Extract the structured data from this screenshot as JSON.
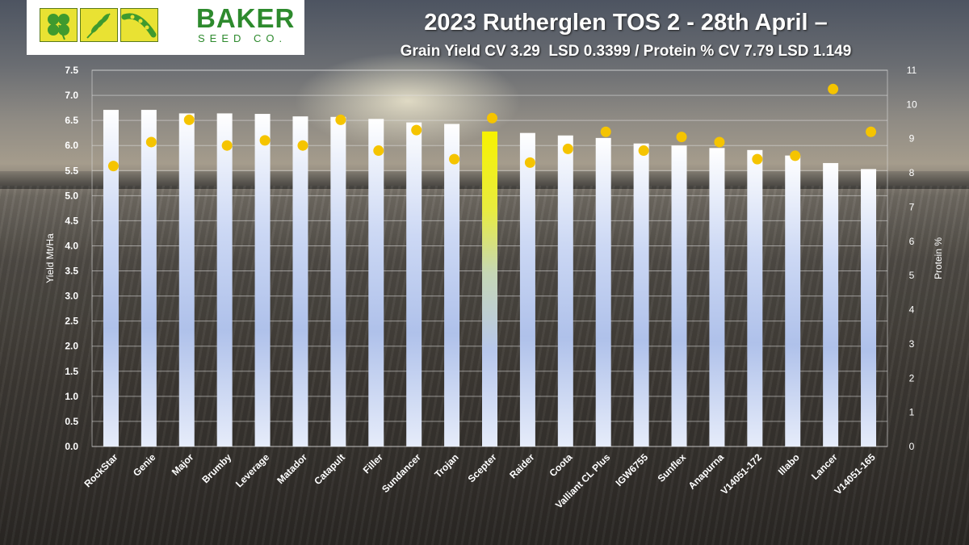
{
  "logo": {
    "word": "BAKER",
    "sub": "SEED CO."
  },
  "chart_data": {
    "type": "bar",
    "title": "2023 Rutherglen TOS 2 - 28th April –",
    "subtitle": "Grain Yield CV 3.29  LSD 0.3399 / Protein % CV 7.79 LSD 1.149",
    "ylabel": "Yield Mt/Ha",
    "y2label": "Protein %",
    "ylim": [
      0,
      7.5
    ],
    "y2lim": [
      0,
      11
    ],
    "yticks": [
      "0.0",
      "0.5",
      "1.0",
      "1.5",
      "2.0",
      "2.5",
      "3.0",
      "3.5",
      "4.0",
      "4.5",
      "5.0",
      "5.5",
      "6.0",
      "6.5",
      "7.0",
      "7.5"
    ],
    "y2ticks": [
      "0",
      "1",
      "2",
      "3",
      "4",
      "5",
      "6",
      "7",
      "8",
      "9",
      "10",
      "11"
    ],
    "grid": true,
    "categories": [
      "RockStar",
      "Genie",
      "Major",
      "Brumby",
      "Leverage",
      "Matador",
      "Catapult",
      "Filler",
      "Sundancer",
      "Trojan",
      "Scepter",
      "Raider",
      "Coota",
      "Valliant CL Plus",
      "IGW6755",
      "Sunflex",
      "Anapurna",
      "V14051-172",
      "Illabo",
      "Lancer",
      "V14051-165"
    ],
    "series": [
      {
        "type": "bar",
        "axis": "left",
        "values": [
          6.71,
          6.71,
          6.64,
          6.64,
          6.63,
          6.58,
          6.57,
          6.53,
          6.46,
          6.43,
          6.28,
          6.25,
          6.2,
          6.15,
          6.04,
          6.0,
          5.95,
          5.91,
          5.8,
          5.65,
          5.53
        ],
        "highlight_index": 10,
        "color": "#e8ecf8",
        "highlight_color": "#f4f02a"
      },
      {
        "type": "scatter",
        "axis": "right",
        "values": [
          8.2,
          8.9,
          9.55,
          8.8,
          8.95,
          8.8,
          9.55,
          8.65,
          9.25,
          8.4,
          9.6,
          8.3,
          8.7,
          9.2,
          8.65,
          9.05,
          8.9,
          8.4,
          8.5,
          10.45,
          9.2
        ],
        "color": "#f5c400"
      }
    ]
  }
}
